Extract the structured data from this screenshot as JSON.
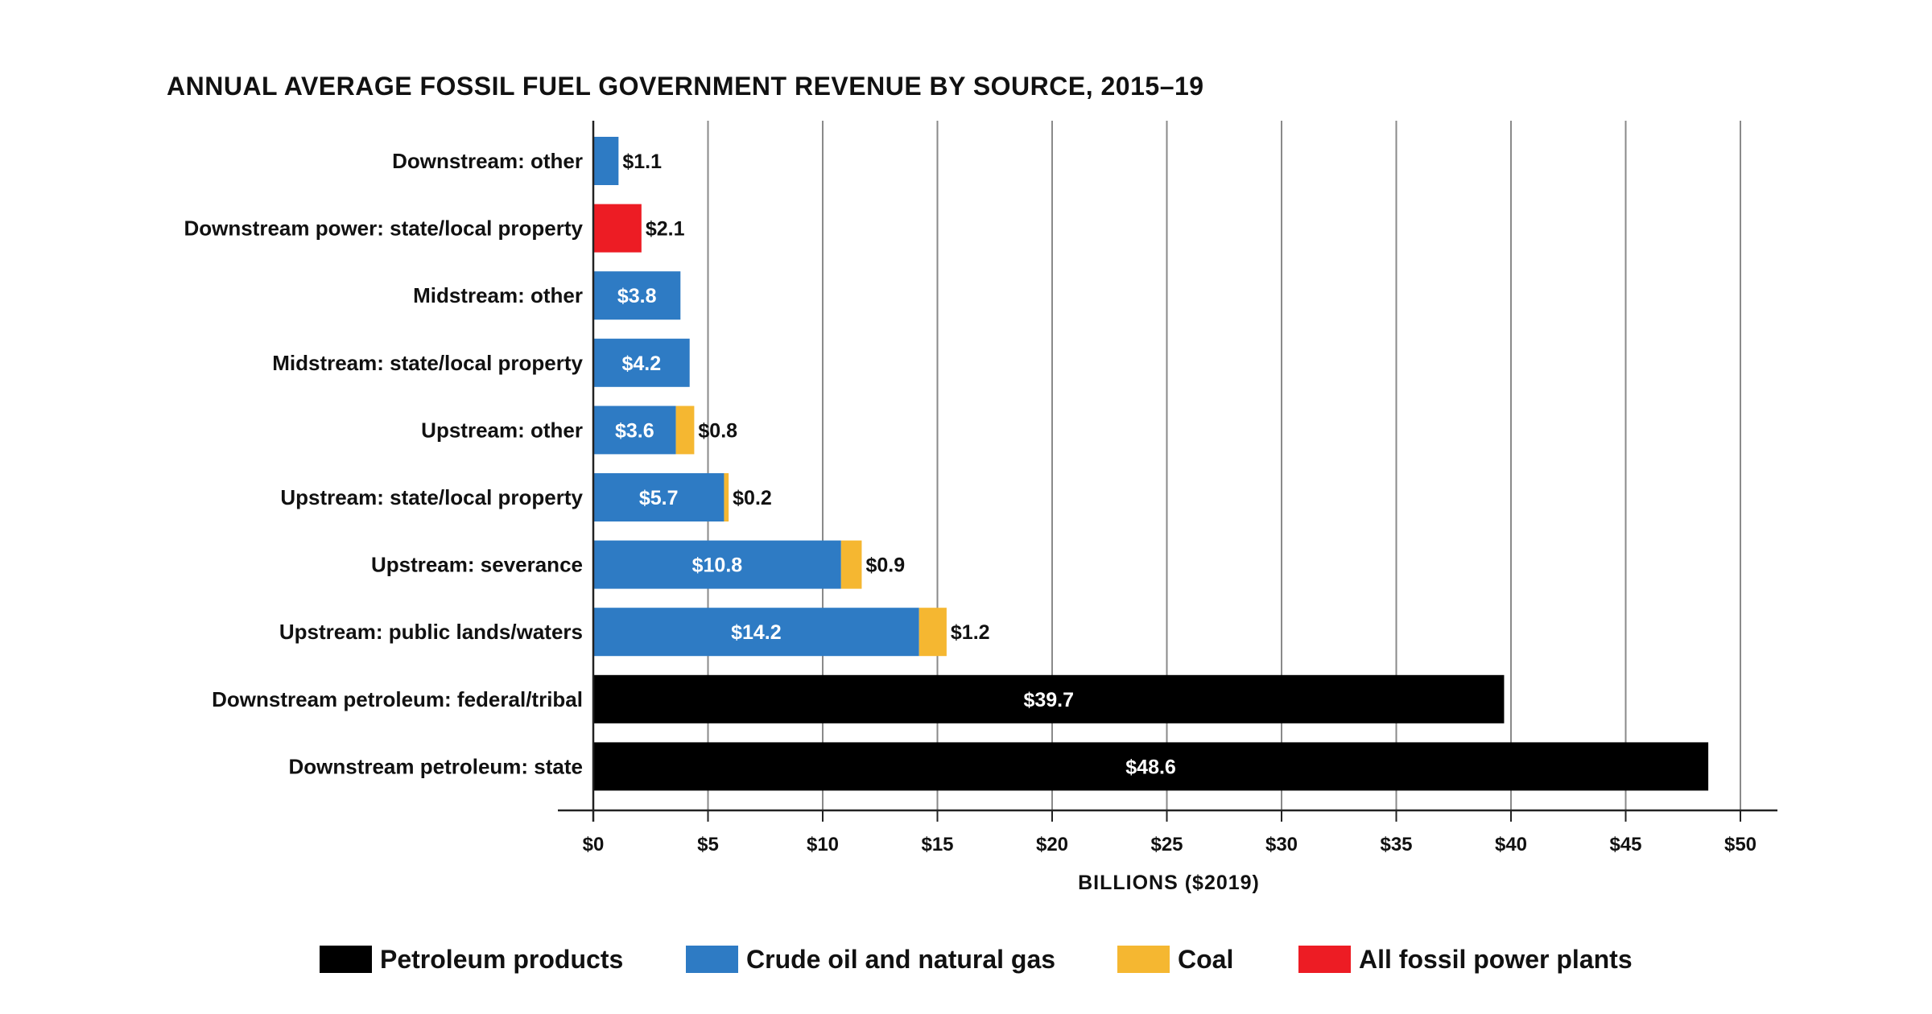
{
  "chart_data": {
    "type": "bar",
    "orientation": "horizontal",
    "stacked": true,
    "title": "ANNUAL AVERAGE FOSSIL FUEL GOVERNMENT REVENUE BY SOURCE, 2015–19",
    "xlabel": "BILLIONS ($2019)",
    "xlim": [
      0,
      50
    ],
    "xticks": [
      0,
      5,
      10,
      15,
      20,
      25,
      30,
      35,
      40,
      45,
      50
    ],
    "xtick_labels": [
      "$0",
      "$5",
      "$10",
      "$15",
      "$20",
      "$25",
      "$30",
      "$35",
      "$40",
      "$45",
      "$50"
    ],
    "grid": true,
    "legend_position": "bottom",
    "categories": [
      "Downstream: other",
      "Downstream power: state/local property",
      "Midstream: other",
      "Midstream: state/local property",
      "Upstream: other",
      "Upstream: state/local property",
      "Upstream: severance",
      "Upstream: public lands/waters",
      "Downstream petroleum: federal/tribal",
      "Downstream petroleum: state"
    ],
    "series": [
      {
        "name": "Petroleum products",
        "color": "#000000",
        "values": [
          0,
          0,
          0,
          0,
          0,
          0,
          0,
          0,
          39.7,
          48.6
        ],
        "labels": [
          "",
          "",
          "",
          "",
          "",
          "",
          "",
          "",
          "$39.7",
          "$48.6"
        ]
      },
      {
        "name": "Crude oil and natural gas",
        "color": "#2e7bc4",
        "values": [
          1.1,
          0,
          3.8,
          4.2,
          3.6,
          5.7,
          10.8,
          14.2,
          0,
          0
        ],
        "labels": [
          "$1.1",
          "",
          "$3.8",
          "$4.2",
          "$3.6",
          "$5.7",
          "$10.8",
          "$14.2",
          "",
          ""
        ]
      },
      {
        "name": "Coal",
        "color": "#f5b731",
        "values": [
          0,
          0,
          0,
          0,
          0.8,
          0.2,
          0.9,
          1.2,
          0,
          0
        ],
        "labels": [
          "",
          "",
          "",
          "",
          "$0.8",
          "$0.2",
          "$0.9",
          "$1.2",
          "",
          ""
        ]
      },
      {
        "name": "All fossil power plants",
        "color": "#ed1c24",
        "values": [
          0,
          2.1,
          0,
          0,
          0,
          0,
          0,
          0,
          0,
          0
        ],
        "labels": [
          "",
          "$2.1",
          "",
          "",
          "",
          "",
          "",
          "",
          "",
          ""
        ]
      }
    ]
  }
}
